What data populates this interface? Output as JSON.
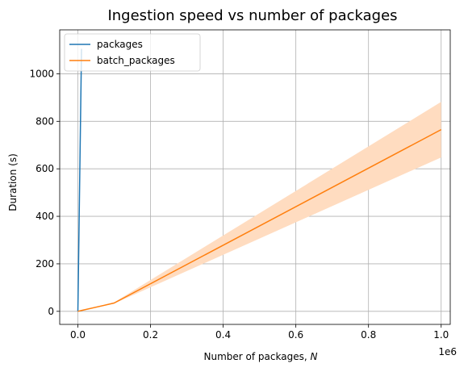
{
  "chart_data": {
    "type": "line",
    "title": "Ingestion speed vs number of packages",
    "xlabel": "Number of packages, ",
    "xlabel_var": "N",
    "ylabel": "Duration (s)",
    "x_offset_label": "1e6",
    "xlim": [
      -0.05,
      1.025
    ],
    "ylim": [
      -55,
      1185
    ],
    "xticks": [
      0.0,
      0.2,
      0.4,
      0.6,
      0.8,
      1.0
    ],
    "xtick_labels": [
      "0.0",
      "0.2",
      "0.4",
      "0.6",
      "0.8",
      "1.0"
    ],
    "yticks": [
      0,
      200,
      400,
      600,
      800,
      1000
    ],
    "ytick_labels": [
      "0",
      "200",
      "400",
      "600",
      "800",
      "1000"
    ],
    "grid": true,
    "legend_position": "top-left",
    "series": [
      {
        "name": "packages",
        "color": "#1f77b4",
        "x": [
          0.0,
          0.001,
          0.01
        ],
        "y": [
          0,
          110,
          1105
        ]
      },
      {
        "name": "batch_packages",
        "color": "#ff7f0e",
        "band_color": "#ffdcc0",
        "x": [
          0.0,
          0.001,
          0.01,
          0.1,
          1.0
        ],
        "y": [
          0,
          0.4,
          3.5,
          35,
          765
        ],
        "y_low": [
          0,
          0.4,
          3.3,
          33,
          648
        ],
        "y_high": [
          0,
          0.4,
          3.8,
          38,
          882
        ]
      }
    ]
  }
}
